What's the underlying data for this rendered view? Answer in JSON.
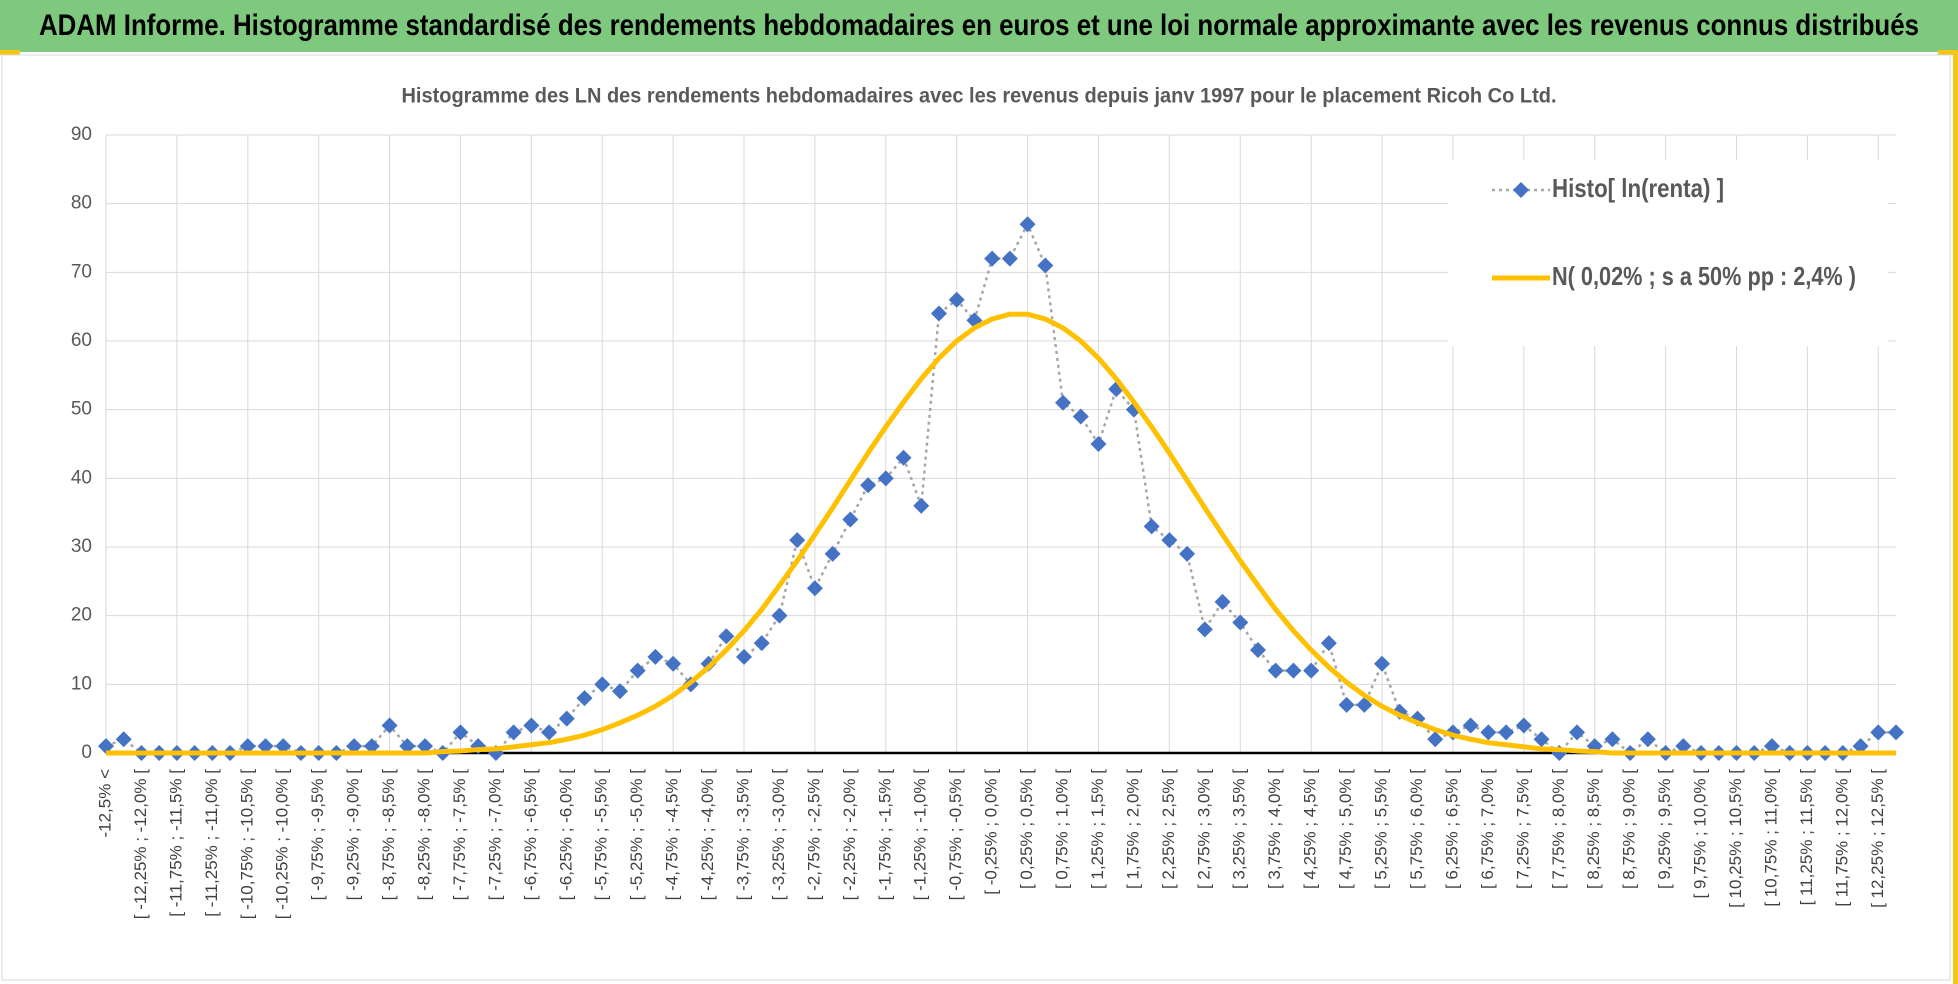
{
  "header": {
    "title": "ADAM Informe. Histogramme standardisé des rendements hebdomadaires en euros et une loi normale approximante avec les revenus connus distribués"
  },
  "chart_data": {
    "type": "line",
    "title": "Histogramme  des LN des rendements hebdomadaires avec les revenus depuis janv 1997 pour le placement Ricoh Co Ltd.",
    "categories": [
      "-12,5% <",
      null,
      "[ -12,25% ; -12,0% [",
      null,
      "[ -11,75% ; -11,5% [",
      null,
      "[ -11,25% ; -11,0% [",
      null,
      "[ -10,75% ; -10,5% [",
      null,
      "[ -10,25% ; -10,0% [",
      null,
      "[ -9,75% ; -9,5% [",
      null,
      "[ -9,25% ; -9,0% [",
      null,
      "[ -8,75% ; -8,5% [",
      null,
      "[ -8,25% ; -8,0% [",
      null,
      "[ -7,75% ; -7,5% [",
      null,
      "[ -7,25% ; -7,0% [",
      null,
      "[ -6,75% ; -6,5% [",
      null,
      "[ -6,25% ; -6,0% [",
      null,
      "[ -5,75% ; -5,5% [",
      null,
      "[ -5,25% ; -5,0% [",
      null,
      "[ -4,75% ; -4,5% [",
      null,
      "[ -4,25% ; -4,0% [",
      null,
      "[ -3,75% ; -3,5% [",
      null,
      "[ -3,25% ; -3,0% [",
      null,
      "[ -2,75% ; -2,5% [",
      null,
      "[ -2,25% ; -2,0% [",
      null,
      "[ -1,75% ; -1,5% [",
      null,
      "[ -1,25% ; -1,0% [",
      null,
      "[ -0,75% ; -0,5% [",
      null,
      "[ -0,25% ; 0,0% [",
      null,
      "[ 0,25% ; 0,5% [",
      null,
      "[ 0,75% ; 1,0% [",
      null,
      "[ 1,25% ; 1,5% [",
      null,
      "[ 1,75% ; 2,0% [",
      null,
      "[ 2,25% ; 2,5% [",
      null,
      "[ 2,75% ; 3,0% [",
      null,
      "[ 3,25% ; 3,5% [",
      null,
      "[ 3,75% ; 4,0% [",
      null,
      "[ 4,25% ; 4,5% [",
      null,
      "[ 4,75% ; 5,0% [",
      null,
      "[ 5,25% ; 5,5% [",
      null,
      "[ 5,75% ; 6,0% [",
      null,
      "[ 6,25% ; 6,5% [",
      null,
      "[ 6,75% ; 7,0% [",
      null,
      "[ 7,25% ; 7,5% [",
      null,
      "[ 7,75% ; 8,0% [",
      null,
      "[ 8,25% ; 8,5% [",
      null,
      "[ 8,75% ; 9,0% [",
      null,
      "[ 9,25% ; 9,5% [",
      null,
      "[ 9,75% ; 10,0% [",
      null,
      "[ 10,25% ; 10,5% [",
      null,
      "[ 10,75% ; 11,0% [",
      null,
      "[ 11,25% ; 11,5% [",
      null,
      "[ 11,75% ; 12,0% [",
      null,
      "[ 12,25% ; 12,5% [",
      null
    ],
    "series": [
      {
        "name": "Histo[ ln(renta) ]",
        "color": "#4472c4",
        "line_color": "#a6a6a6",
        "marker": "diamond",
        "dash": "dotted",
        "values": [
          1,
          2,
          0,
          0,
          0,
          0,
          0,
          0,
          1,
          1,
          1,
          0,
          0,
          0,
          1,
          1,
          4,
          1,
          1,
          0,
          3,
          1,
          0,
          3,
          4,
          3,
          5,
          8,
          10,
          9,
          12,
          14,
          13,
          10,
          13,
          17,
          14,
          16,
          20,
          31,
          24,
          29,
          34,
          39,
          40,
          43,
          36,
          64,
          66,
          63,
          72,
          72,
          77,
          71,
          51,
          49,
          45,
          53,
          50,
          33,
          31,
          29,
          18,
          22,
          19,
          15,
          12,
          12,
          12,
          16,
          7,
          7,
          13,
          6,
          5,
          2,
          3,
          4,
          3,
          3,
          4,
          2,
          0,
          3,
          1,
          2,
          0,
          2,
          0,
          1,
          0,
          0,
          0,
          0,
          1,
          0,
          0,
          0,
          0,
          1,
          3,
          3
        ]
      },
      {
        "name": "N( 0,02% ; s a 50% pp : 2,4% )",
        "color": "#ffc000",
        "line_color": "#ffc000",
        "marker": "none",
        "dash": "solid",
        "values": [
          0,
          0,
          0,
          0,
          0,
          0,
          0,
          0,
          0,
          0,
          0,
          0,
          0,
          0,
          0,
          0,
          0,
          0,
          0,
          0.2,
          0.3,
          0.5,
          0.6,
          0.9,
          1.2,
          1.5,
          2.0,
          2.6,
          3.4,
          4.4,
          5.5,
          6.8,
          8.4,
          10.3,
          12.5,
          15.0,
          17.8,
          20.9,
          24.4,
          28.0,
          31.8,
          35.7,
          39.7,
          43.7,
          47.5,
          51.1,
          54.5,
          57.5,
          60.0,
          61.9,
          63.2,
          63.9,
          63.9,
          63.2,
          61.9,
          60.0,
          57.5,
          54.5,
          51.1,
          47.5,
          43.7,
          39.7,
          35.7,
          31.8,
          28.0,
          24.4,
          20.9,
          17.8,
          15.0,
          12.5,
          10.3,
          8.4,
          6.8,
          5.5,
          4.4,
          3.4,
          2.6,
          2.0,
          1.5,
          1.2,
          0.9,
          0.6,
          0.5,
          0.3,
          0.2,
          0,
          0,
          0,
          0,
          0,
          0,
          0,
          0,
          0,
          0,
          0,
          0,
          0,
          0,
          0,
          0,
          0
        ]
      }
    ],
    "ylim": [
      0,
      90
    ],
    "yticks": [
      0,
      10,
      20,
      30,
      40,
      50,
      60,
      70,
      80,
      90
    ],
    "grid": true,
    "legend": "upper right"
  }
}
